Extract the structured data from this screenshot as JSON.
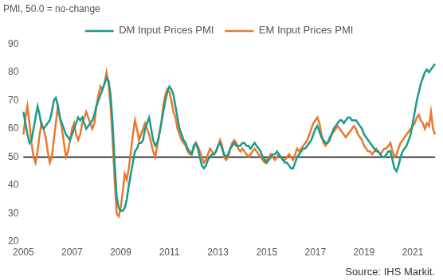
{
  "chart_data": {
    "type": "line",
    "ylabel": "PMI, 50.0 = no-change",
    "source": "Source: IHS Markit.",
    "reference_line": 50,
    "grid": false,
    "legend": "top",
    "ylim": [
      20,
      90
    ],
    "yticks": [
      20,
      30,
      40,
      50,
      60,
      70,
      80,
      90
    ],
    "categories": [
      "2005",
      null,
      null,
      null,
      null,
      null,
      null,
      null,
      null,
      null,
      null,
      null,
      null,
      null,
      null,
      null,
      null,
      null,
      null,
      null,
      null,
      null,
      null,
      null,
      "2007",
      null,
      null,
      null,
      null,
      null,
      null,
      null,
      null,
      null,
      null,
      null,
      null,
      null,
      null,
      null,
      null,
      null,
      null,
      null,
      null,
      null,
      null,
      null,
      "2009",
      null,
      null,
      null,
      null,
      null,
      null,
      null,
      null,
      null,
      null,
      null,
      null,
      null,
      null,
      null,
      null,
      null,
      null,
      null,
      null,
      null,
      null,
      null,
      "2011",
      null,
      null,
      null,
      null,
      null,
      null,
      null,
      null,
      null,
      null,
      null,
      null,
      null,
      null,
      null,
      null,
      null,
      null,
      null,
      null,
      null,
      null,
      null,
      "2013",
      null,
      null,
      null,
      null,
      null,
      null,
      null,
      null,
      null,
      null,
      null,
      null,
      null,
      null,
      null,
      null,
      null,
      null,
      null,
      null,
      null,
      null,
      null,
      "2015",
      null,
      null,
      null,
      null,
      null,
      null,
      null,
      null,
      null,
      null,
      null,
      null,
      null,
      null,
      null,
      null,
      null,
      null,
      null,
      null,
      null,
      null,
      null,
      "2017",
      null,
      null,
      null,
      null,
      null,
      null,
      null,
      null,
      null,
      null,
      null,
      null,
      null,
      null,
      null,
      null,
      null,
      null,
      null,
      null,
      null,
      null,
      null,
      "2019",
      null,
      null,
      null,
      null,
      null,
      null,
      null,
      null,
      null,
      null,
      null,
      null,
      null,
      null,
      null,
      null,
      null,
      null,
      null,
      null,
      null,
      null,
      null,
      "2021",
      null,
      null,
      null,
      null,
      null,
      null,
      null,
      null,
      null,
      null,
      null
    ],
    "series": [
      {
        "name": "DM Input Prices PMI",
        "color": "#1a9a8a",
        "line_style": "solid",
        "values": [
          66,
          62,
          58,
          55,
          56,
          60,
          64,
          68,
          65,
          61,
          60,
          61,
          62,
          63,
          66,
          70,
          71,
          68,
          64,
          62,
          60,
          58,
          57,
          56,
          58,
          60,
          62,
          64,
          63,
          64,
          62,
          60,
          61,
          62,
          63,
          65,
          68,
          70,
          72,
          74,
          76,
          78,
          77,
          72,
          62,
          48,
          36,
          32,
          31,
          31,
          32,
          35,
          40,
          44,
          48,
          52,
          53,
          55,
          55,
          56,
          60,
          62,
          64,
          60,
          56,
          54,
          55,
          58,
          62,
          66,
          70,
          73,
          75,
          74,
          72,
          68,
          64,
          60,
          58,
          56,
          55,
          53,
          52,
          51,
          54,
          55,
          53,
          50,
          47,
          46,
          47,
          49,
          50,
          51,
          51,
          52,
          54,
          55,
          53,
          51,
          50,
          51,
          53,
          54,
          55,
          54,
          54,
          54,
          55,
          55,
          54,
          54,
          53,
          54,
          55,
          54,
          53,
          52,
          50,
          49,
          48,
          49,
          50,
          51,
          51,
          52,
          51,
          50,
          49,
          48,
          48,
          47,
          46,
          46,
          48,
          50,
          51,
          52,
          53,
          53,
          54,
          55,
          56,
          58,
          60,
          61,
          59,
          57,
          56,
          55,
          55,
          56,
          58,
          60,
          61,
          62,
          63,
          63,
          62,
          63,
          64,
          64,
          63,
          63,
          63,
          62,
          61,
          60,
          58,
          57,
          56,
          55,
          54,
          53,
          52,
          52,
          51,
          50,
          50,
          51,
          52,
          52,
          49,
          46,
          45,
          47,
          50,
          52,
          53,
          54,
          56,
          58,
          62,
          66,
          70,
          73,
          76,
          78,
          80,
          81,
          80,
          81,
          82,
          83
        ]
      },
      {
        "name": "EM Input Prices PMI",
        "color": "#e8782e",
        "line_style": "solid",
        "values": [
          58,
          64,
          68,
          62,
          55,
          50,
          48,
          52,
          58,
          62,
          60,
          57,
          52,
          48,
          50,
          56,
          62,
          68,
          64,
          60,
          55,
          50,
          52,
          56,
          60,
          62,
          58,
          56,
          58,
          62,
          64,
          66,
          64,
          62,
          60,
          62,
          68,
          72,
          75,
          74,
          76,
          80,
          76,
          68,
          56,
          42,
          30,
          29,
          32,
          38,
          44,
          42,
          46,
          52,
          58,
          63,
          60,
          56,
          58,
          60,
          62,
          60,
          58,
          55,
          52,
          50,
          54,
          58,
          62,
          68,
          72,
          74,
          73,
          70,
          66,
          64,
          60,
          58,
          56,
          55,
          54,
          52,
          51,
          51,
          53,
          55,
          54,
          52,
          50,
          48,
          49,
          51,
          53,
          52,
          51,
          52,
          54,
          56,
          54,
          50,
          49,
          50,
          53,
          55,
          56,
          55,
          53,
          52,
          53,
          52,
          51,
          50,
          51,
          52,
          53,
          52,
          51,
          50,
          49,
          48,
          49,
          50,
          51,
          50,
          49,
          50,
          51,
          50,
          49,
          49,
          50,
          51,
          50,
          49,
          51,
          53,
          52,
          53,
          54,
          55,
          56,
          58,
          60,
          62,
          63,
          64,
          62,
          58,
          55,
          54,
          55,
          57,
          58,
          59,
          60,
          61,
          60,
          59,
          58,
          57,
          58,
          59,
          60,
          61,
          60,
          58,
          57,
          56,
          54,
          53,
          52,
          52,
          51,
          52,
          53,
          52,
          51,
          52,
          53,
          53,
          54,
          55,
          52,
          50,
          51,
          53,
          55,
          56,
          57,
          58,
          59,
          60,
          61,
          62,
          64,
          65,
          63,
          62,
          60,
          62,
          61,
          66,
          60,
          58
        ]
      }
    ]
  }
}
